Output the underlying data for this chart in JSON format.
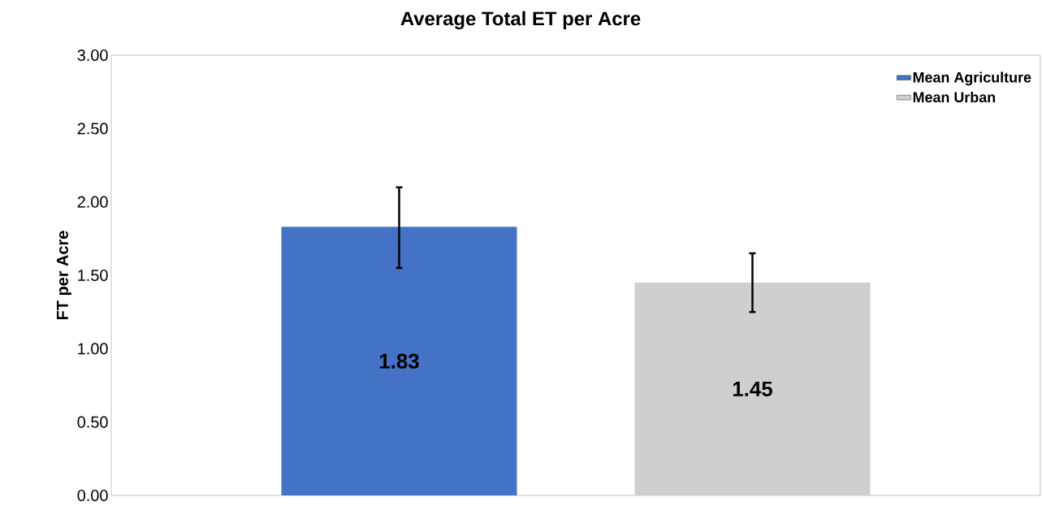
{
  "chart_data": {
    "type": "bar",
    "title": "Average Total ET per Acre",
    "ylabel": "FT per Acre",
    "categories": [
      null
    ],
    "series": [
      {
        "name": "Mean Agriculture",
        "color": "#4472c4",
        "values": [
          1.83
        ],
        "errors": [
          [
            1.55,
            2.1
          ]
        ]
      },
      {
        "name": "Mean Urban",
        "color": "#d0cece",
        "values": [
          1.45
        ],
        "errors": [
          [
            1.25,
            1.65
          ]
        ]
      }
    ],
    "ylim": [
      0,
      3
    ],
    "yticks": [
      {
        "value": 0,
        "label": "0.00"
      },
      {
        "value": 0.5,
        "label": "0.50"
      },
      {
        "value": 1,
        "label": "1.00"
      },
      {
        "value": 1.5,
        "label": "1.50"
      },
      {
        "value": 2,
        "label": "2.00"
      },
      {
        "value": 2.5,
        "label": "2.50"
      },
      {
        "value": 3,
        "label": "3.00"
      }
    ],
    "data_labels": true,
    "legend": "top right",
    "grid": false
  }
}
